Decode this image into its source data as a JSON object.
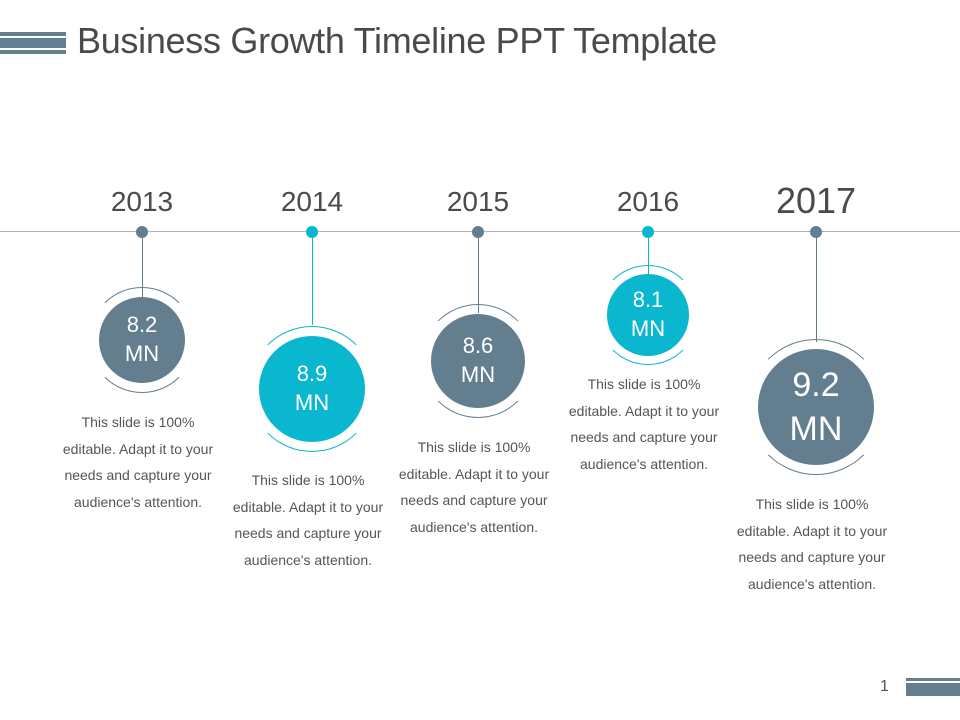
{
  "slide": {
    "title": "Business Growth Timeline PPT Template",
    "page_number": "1"
  },
  "colors": {
    "slate": "#637e8f",
    "teal": "#0ab7cf",
    "line": "#aab3b9",
    "text": "#4a4a4a"
  },
  "milestones": [
    {
      "year": "2013",
      "value": "8.2",
      "unit": "MN",
      "color": "slate",
      "description": "This slide is 100% editable. Adapt it to your needs and capture your audience's attention."
    },
    {
      "year": "2014",
      "value": "8.9",
      "unit": "MN",
      "color": "teal",
      "description": "This slide is 100% editable. Adapt it to your needs and capture your audience's attention."
    },
    {
      "year": "2015",
      "value": "8.6",
      "unit": "MN",
      "color": "slate",
      "description": "This slide is 100% editable. Adapt it to your needs and capture your audience's attention."
    },
    {
      "year": "2016",
      "value": "8.1",
      "unit": "MN",
      "color": "teal",
      "description": "This slide is 100% editable. Adapt it to your needs and capture your audience's attention."
    },
    {
      "year": "2017",
      "value": "9.2",
      "unit": "MN",
      "color": "slate",
      "description": "This slide is 100% editable. Adapt it to your needs and capture your audience's attention."
    }
  ]
}
